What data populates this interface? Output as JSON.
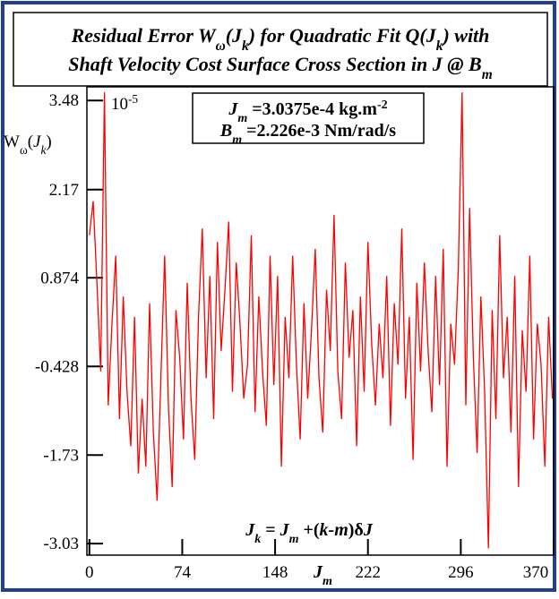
{
  "chart_data": {
    "type": "line",
    "title_lines": [
      [
        {
          "t": "Residual Error W"
        },
        {
          "t": "ω",
          "sub": true
        },
        {
          "t": "(J"
        },
        {
          "t": "k",
          "sub": true
        },
        {
          "t": ") for Quadratic Fit Q(J"
        },
        {
          "t": "k",
          "sub": true
        },
        {
          "t": ") with"
        }
      ],
      [
        {
          "t": "Shaft Velocity Cost Surface Cross Section in J @ B"
        },
        {
          "t": "m",
          "sub": true
        }
      ]
    ],
    "y_label": [
      {
        "t": "W"
      },
      {
        "t": "ω",
        "sub": true
      },
      {
        "t": "("
      },
      {
        "t": "J",
        "i": true
      },
      {
        "t": "k",
        "sub": true,
        "i": true
      },
      {
        "t": ")"
      }
    ],
    "y_scale": [
      {
        "t": "10"
      },
      {
        "t": "-5",
        "sup": true
      }
    ],
    "x_label": [
      {
        "t": "J",
        "i": true
      },
      {
        "t": "m",
        "sub": true,
        "i": true
      }
    ],
    "param_box": [
      [
        {
          "t": "J",
          "i": true
        },
        {
          "t": "m",
          "sub": true,
          "i": true
        },
        {
          "t": " =3.0375e-4 kg.m"
        },
        {
          "t": "-2",
          "sup": true
        }
      ],
      [
        {
          "t": "B",
          "i": true
        },
        {
          "t": "m",
          "sub": true,
          "i": true
        },
        {
          "t": " =2.226e-3 Nm/rad/s"
        }
      ]
    ],
    "formula": [
      {
        "t": "J",
        "i": true
      },
      {
        "t": "k",
        "sub": true,
        "i": true
      },
      {
        "t": " = "
      },
      {
        "t": "J",
        "i": true
      },
      {
        "t": "m",
        "sub": true,
        "i": true
      },
      {
        "t": " +("
      },
      {
        "t": "k-m",
        "i": true
      },
      {
        "t": ")δ"
      },
      {
        "t": "J",
        "i": true
      }
    ],
    "color": "#ff0000",
    "xlim": [
      -2,
      370
    ],
    "ylim": [
      -3.2,
      3.68
    ],
    "xticks": [
      0,
      74,
      148,
      222,
      296,
      370
    ],
    "yticks": [
      3.48,
      2.17,
      0.874,
      -0.428,
      -1.73,
      -3.03
    ],
    "x": [
      0,
      3,
      6,
      9,
      12,
      15,
      18,
      21,
      24,
      27,
      30,
      33,
      36,
      39,
      42,
      45,
      48,
      51,
      54,
      57,
      60,
      63,
      66,
      69,
      72,
      75,
      78,
      81,
      84,
      87,
      90,
      93,
      96,
      99,
      102,
      105,
      108,
      111,
      114,
      117,
      120,
      123,
      126,
      129,
      132,
      135,
      138,
      141,
      144,
      147,
      150,
      153,
      156,
      159,
      162,
      165,
      168,
      171,
      174,
      177,
      180,
      183,
      186,
      189,
      192,
      195,
      198,
      201,
      204,
      207,
      210,
      213,
      216,
      219,
      222,
      225,
      228,
      231,
      234,
      237,
      240,
      243,
      246,
      249,
      252,
      255,
      258,
      261,
      264,
      267,
      270,
      273,
      276,
      279,
      282,
      285,
      288,
      291,
      294,
      297,
      300,
      303,
      306,
      309,
      312,
      315,
      318,
      321,
      324,
      327,
      330,
      333,
      336,
      339,
      342,
      345,
      348,
      351,
      354,
      357,
      360,
      363,
      366,
      369
    ],
    "values": [
      1.5,
      2.0,
      0.8,
      -0.5,
      3.6,
      -1.0,
      0.2,
      1.2,
      -1.2,
      0.6,
      -0.8,
      -1.6,
      0.3,
      -2.0,
      -0.9,
      -1.9,
      0.5,
      -1.4,
      -2.4,
      -0.6,
      1.2,
      -1.0,
      -2.2,
      0.4,
      -0.3,
      -1.5,
      0.8,
      -0.9,
      -1.8,
      0.3,
      1.6,
      -0.6,
      0.9,
      -1.2,
      1.4,
      -0.2,
      0.7,
      1.7,
      -0.8,
      1.1,
      0.2,
      -0.9,
      -0.4,
      1.5,
      -1.1,
      0.6,
      -0.5,
      -1.3,
      1.2,
      -0.7,
      0.9,
      -1.9,
      0.3,
      -0.6,
      1.2,
      -0.4,
      -1.5,
      0.5,
      -0.9,
      0.1,
      1.3,
      -0.6,
      -1.4,
      0.7,
      -0.2,
      1.8,
      -0.5,
      -1.2,
      1.1,
      -0.3,
      0.4,
      -1.6,
      0.6,
      -0.8,
      1.4,
      -0.1,
      -1.0,
      0.2,
      -0.6,
      0.9,
      -1.3,
      0.5,
      -0.4,
      1.6,
      -0.9,
      0.3,
      -1.8,
      0.8,
      -0.5,
      1.1,
      -0.2,
      -1.1,
      0.9,
      -0.7,
      1.3,
      -1.9,
      0.2,
      -0.4,
      1.0,
      3.6,
      -1.0,
      1.9,
      -0.3,
      -1.7,
      0.6,
      -0.8,
      -3.1,
      0.4,
      -1.2,
      1.5,
      -0.6,
      0.3,
      -1.4,
      0.9,
      -2.2,
      0.1,
      -0.8,
      1.2,
      -1.5,
      0.2,
      -0.4,
      -1.9,
      0.3,
      -0.9
    ]
  }
}
